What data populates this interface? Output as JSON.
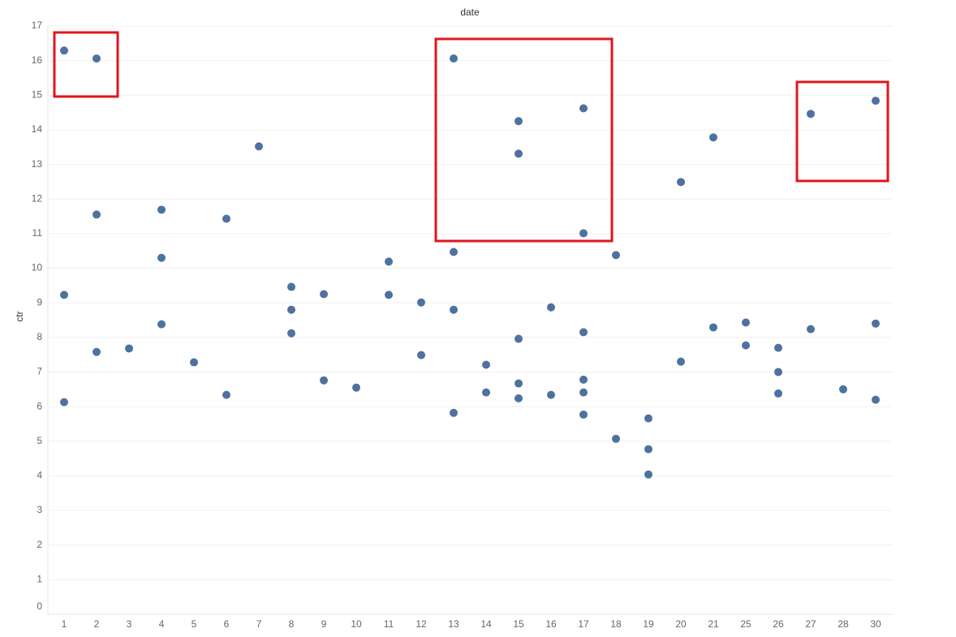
{
  "chart_data": {
    "type": "scatter",
    "title": "date",
    "y_label": "ctr",
    "categories": [
      1,
      2,
      3,
      4,
      5,
      6,
      7,
      8,
      9,
      10,
      11,
      12,
      13,
      14,
      15,
      16,
      17,
      18,
      19,
      20,
      21,
      25,
      26,
      27,
      28,
      30
    ],
    "x": [
      1,
      1,
      1,
      2,
      2,
      2,
      3,
      4,
      4,
      4,
      5,
      6,
      6,
      7,
      8,
      8,
      8,
      9,
      9,
      10,
      11,
      11,
      12,
      12,
      13,
      13,
      13,
      13,
      14,
      14,
      15,
      15,
      15,
      15,
      15,
      16,
      16,
      17,
      17,
      17,
      17,
      17,
      17,
      18,
      18,
      19,
      19,
      19,
      20,
      20,
      21,
      21,
      25,
      25,
      26,
      26,
      26,
      27,
      27,
      28,
      30,
      30,
      30
    ],
    "values": [
      16.29,
      9.23,
      6.13,
      16.06,
      11.55,
      7.58,
      7.68,
      11.69,
      10.3,
      8.38,
      7.28,
      11.43,
      6.34,
      13.52,
      9.46,
      8.8,
      8.12,
      9.25,
      6.76,
      6.55,
      10.19,
      9.23,
      9.01,
      7.49,
      16.06,
      10.47,
      8.8,
      5.82,
      7.21,
      6.41,
      14.25,
      13.31,
      7.96,
      6.67,
      6.24,
      8.87,
      6.34,
      14.62,
      11.01,
      8.15,
      6.78,
      6.41,
      5.77,
      10.38,
      5.07,
      5.66,
      4.77,
      4.04,
      12.49,
      7.3,
      13.78,
      8.29,
      8.43,
      7.77,
      7.7,
      7.0,
      6.38,
      14.46,
      8.24,
      6.5,
      14.84,
      8.4,
      6.2
    ],
    "color": "#4e72a0",
    "ylim": [
      0,
      17
    ],
    "yticks": [
      0,
      1,
      2,
      3,
      4,
      5,
      6,
      7,
      8,
      9,
      10,
      11,
      12,
      13,
      14,
      15,
      16,
      17
    ],
    "grid": true
  }
}
